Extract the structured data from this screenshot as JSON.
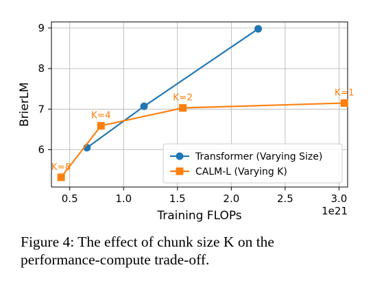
{
  "chart_data": {
    "type": "line",
    "xlabel": "Training FLOPs",
    "ylabel": "BrierLM",
    "x_offset_label": "1e21",
    "xlim": [
      0.33,
      3.08
    ],
    "ylim": [
      5.08,
      9.15
    ],
    "x_ticks": [
      0.5,
      1.0,
      1.5,
      2.0,
      2.5,
      3.0
    ],
    "x_tick_labels": [
      "0.5",
      "1.0",
      "1.5",
      "2.0",
      "2.5",
      "3.0"
    ],
    "y_ticks": [
      6,
      7,
      8,
      9
    ],
    "y_tick_labels": [
      "6",
      "7",
      "8",
      "9"
    ],
    "grid": true,
    "legend_position": "lower-right",
    "series": [
      {
        "name": "Transformer (Varying Size)",
        "color": "#1f77b4",
        "marker": "circle",
        "x": [
          0.66,
          1.19,
          2.25
        ],
        "y": [
          6.05,
          7.07,
          8.98
        ]
      },
      {
        "name": "CALM-L (Varying K)",
        "color": "#ff7f0e",
        "marker": "square",
        "x": [
          0.42,
          0.79,
          1.55,
          3.05
        ],
        "y": [
          5.32,
          6.59,
          7.03,
          7.15
        ],
        "labels": [
          "K=8",
          "K=4",
          "K=2",
          "K=1"
        ]
      }
    ]
  },
  "caption": "Figure 4:  The effect of chunk size K on the performance-compute trade-off."
}
